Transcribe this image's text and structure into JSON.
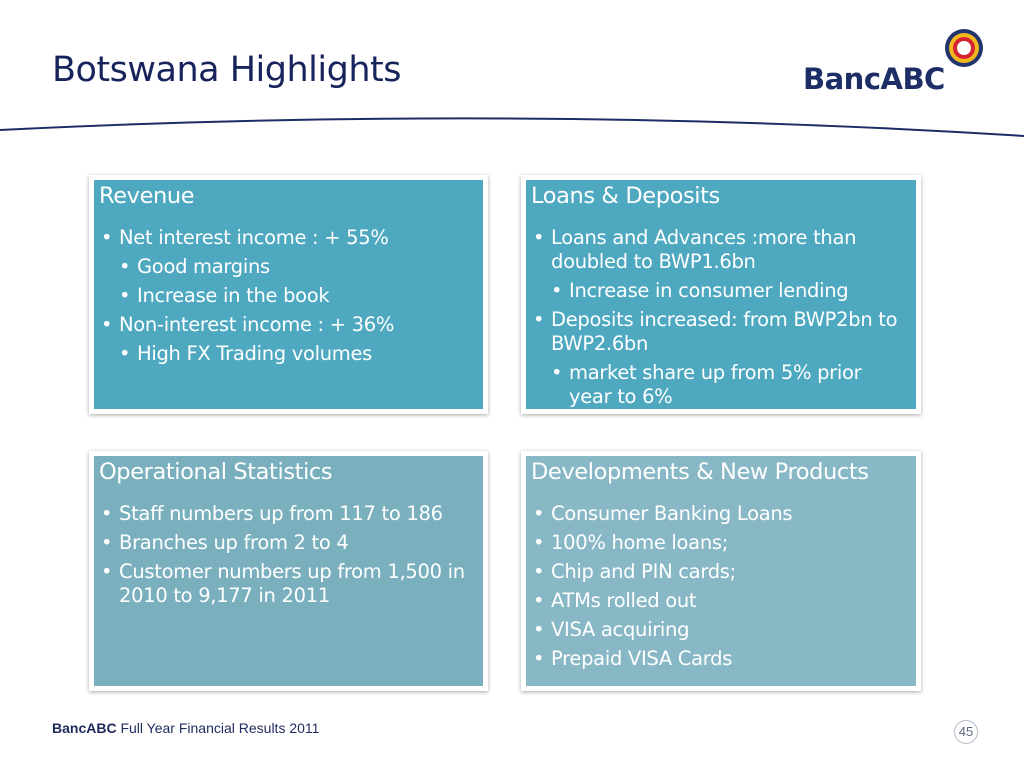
{
  "title": "Botswana Highlights",
  "logo": {
    "text": "BancABC",
    "colors": {
      "text": "#1d2d66",
      "ring_outer": "#22356e",
      "ring_yellow": "#f1b71c",
      "ring_red": "#d4252f"
    }
  },
  "panels": {
    "revenue": {
      "title": "Revenue",
      "items": [
        {
          "text": "Net interest income : + 55%",
          "level": 1
        },
        {
          "text": "Good margins",
          "level": 2
        },
        {
          "text": "Increase in the book",
          "level": 2
        },
        {
          "text": "Non-interest income : + 36%",
          "level": 1
        },
        {
          "text": "High FX Trading volumes",
          "level": 2
        }
      ]
    },
    "loans": {
      "title": "Loans & Deposits",
      "items": [
        {
          "text": "Loans and Advances :more than doubled to BWP1.6bn",
          "level": 1
        },
        {
          "text": "Increase in consumer lending",
          "level": 2
        },
        {
          "text": "Deposits increased: from BWP2bn to BWP2.6bn",
          "level": 1
        },
        {
          "text": "market share up from 5% prior year to 6%",
          "level": 2
        }
      ]
    },
    "operational": {
      "title": "Operational Statistics",
      "items": [
        {
          "text": "Staff numbers  up from 117 to 186",
          "level": 1
        },
        {
          "text": "Branches up from 2 to 4",
          "level": 1
        },
        {
          "text": "Customer numbers up from 1,500 in 2010 to 9,177 in 2011",
          "level": 1
        }
      ]
    },
    "developments": {
      "title": "Developments & New Products",
      "items": [
        {
          "text": "Consumer Banking Loans",
          "level": 1
        },
        {
          "text": "100% home loans;",
          "level": 1
        },
        {
          "text": "Chip and PIN cards;",
          "level": 1
        },
        {
          "text": "ATMs rolled out",
          "level": 1
        },
        {
          "text": "VISA acquiring",
          "level": 1
        },
        {
          "text": "Prepaid  VISA Cards",
          "level": 1
        }
      ]
    }
  },
  "footer": {
    "brand": "BancABC",
    "text": "Full Year Financial Results 2011",
    "page_number": "45"
  },
  "colors": {
    "title": "#17245c",
    "panel_blue": "#4da8c0",
    "panel_grey": "#7ab0be",
    "panel_light": "#88b8c6",
    "divider": "#1d2d66"
  }
}
